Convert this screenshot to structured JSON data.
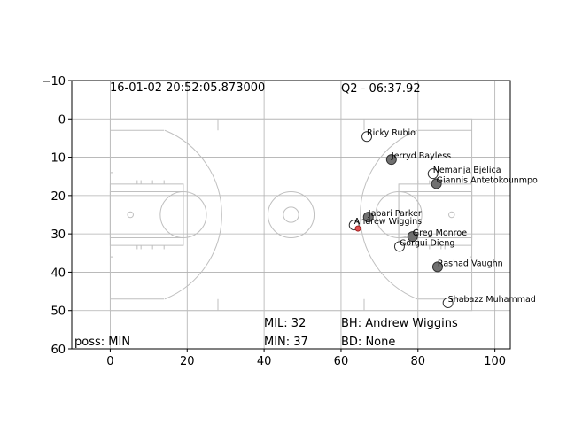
{
  "chart_data": {
    "type": "scatter",
    "xlim": [
      -10,
      104
    ],
    "ylim": [
      -10,
      60
    ],
    "y_inverted": true,
    "grid": true,
    "xticks": [
      0,
      20,
      40,
      60,
      80,
      100
    ],
    "yticks": [
      {
        "value": -10,
        "label": "−10"
      },
      0,
      10,
      20,
      30,
      40,
      50,
      60
    ],
    "annotations": [
      "16-01-02 20:52:05.873000",
      "Q2 - 06:37.92",
      "MIL: 32",
      "MIN: 37",
      "BH: Andrew Wiggins",
      "BD: None",
      "poss: MIN"
    ],
    "series": [
      {
        "color": "#707070",
        "labels": [
          "Jerryd Bayless",
          "Giannis Antetokounmpo",
          "Jabari Parker",
          "Greg Monroe",
          "Rashad Vaughn"
        ],
        "x": [
          73.1,
          84.8,
          67.1,
          78.6,
          85.1
        ],
        "y": [
          10.6,
          16.9,
          25.6,
          30.7,
          38.6
        ]
      },
      {
        "color": "#ffffff",
        "labels": [
          "Ricky Rubio",
          "Nemanja Bjelica",
          "Andrew Wiggins",
          "Gorgui Dieng",
          "Shabazz Muhammad"
        ],
        "x": [
          66.7,
          83.9,
          63.4,
          75.2,
          87.8
        ],
        "y": [
          4.6,
          14.3,
          27.7,
          33.3,
          48.0
        ]
      },
      {
        "color": "#e05050",
        "x": [
          64.4
        ],
        "y": [
          28.6
        ]
      }
    ]
  }
}
